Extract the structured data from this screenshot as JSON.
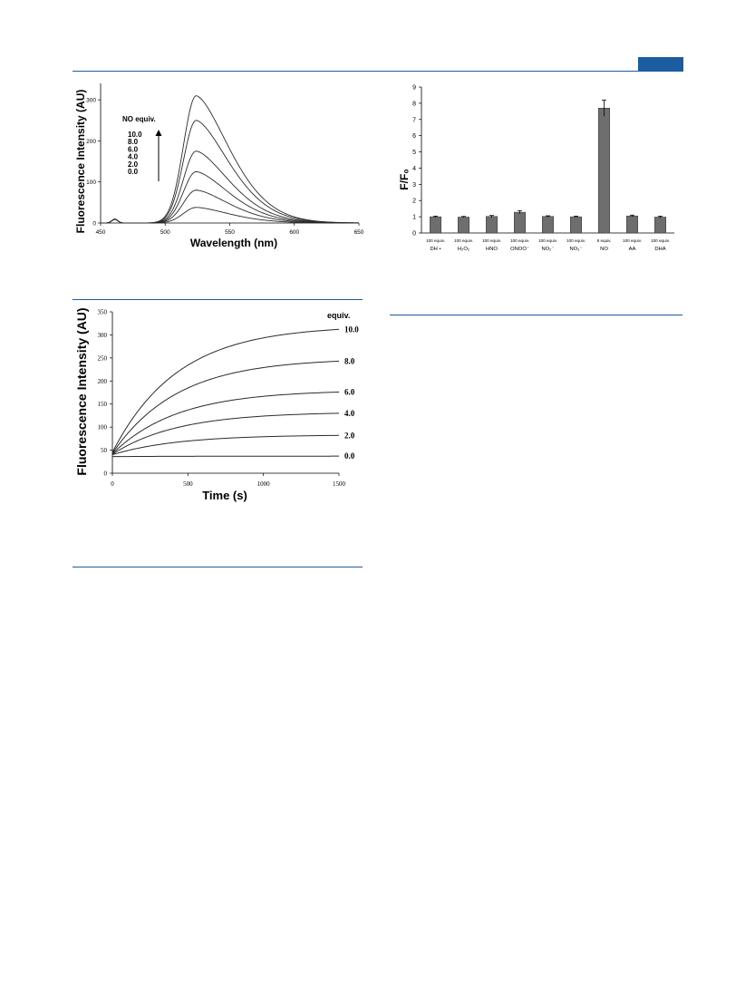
{
  "colors": {
    "header_blue": "#1b5d9e",
    "bar_fill": "#6e6e6e",
    "line": "#2a2a2a"
  },
  "chart_data": [
    {
      "type": "line",
      "xlabel": "Wavelength (nm)",
      "ylabel": "Fluorescence Intensity (AU)",
      "xlim": [
        450,
        650
      ],
      "ylim": [
        0,
        340
      ],
      "xticks": [
        "450",
        "500",
        "550",
        "600",
        "650"
      ],
      "yticks": [
        "0",
        "100",
        "200",
        "300"
      ],
      "legend_title": "NO equiv.",
      "legend_entries": [
        "10.0",
        "8.0",
        "6.0",
        "4.0",
        "2.0",
        "0.0"
      ],
      "series": [
        {
          "name": "10.0",
          "peak": 310
        },
        {
          "name": "8.0",
          "peak": 250
        },
        {
          "name": "6.0",
          "peak": 175
        },
        {
          "name": "4.0",
          "peak": 125
        },
        {
          "name": "2.0",
          "peak": 80
        },
        {
          "name": "0.0",
          "peak": 38
        }
      ],
      "peak_wavelength": 524,
      "minor_peak": {
        "wavelength": 461,
        "value": 10
      }
    },
    {
      "type": "bar",
      "ylabel": "F/F₀",
      "ylim": [
        0,
        9
      ],
      "yticks": [
        "0",
        "1",
        "2",
        "3",
        "4",
        "5",
        "6",
        "7",
        "8",
        "9"
      ],
      "categories": [
        {
          "top": "100 equiv.",
          "bottom": "DH •"
        },
        {
          "top": "100 equiv.",
          "bottom": "H₂O₂"
        },
        {
          "top": "100 equiv.",
          "bottom": "HNO"
        },
        {
          "top": "100 equiv.",
          "bottom": "ONOO⁻"
        },
        {
          "top": "100 equiv.",
          "bottom": "NO₂⁻"
        },
        {
          "top": "100 equiv.",
          "bottom": "NO₃⁻"
        },
        {
          "top": "8 equiv.",
          "bottom": "NO"
        },
        {
          "top": "100 equiv.",
          "bottom": "AA"
        },
        {
          "top": "100 equiv.",
          "bottom": "DHA"
        }
      ],
      "values": [
        1.0,
        0.98,
        1.02,
        1.28,
        1.02,
        1.0,
        7.7,
        1.05,
        0.98
      ],
      "errors": [
        0.04,
        0.04,
        0.06,
        0.1,
        0.04,
        0.04,
        0.5,
        0.05,
        0.06
      ]
    },
    {
      "type": "line",
      "xlabel": "Time (s)",
      "ylabel": "Fluorescence Intensity (AU)",
      "xlim": [
        0,
        1500
      ],
      "ylim": [
        0,
        350
      ],
      "xticks": [
        "0",
        "500",
        "1000",
        "1500"
      ],
      "yticks": [
        "0",
        "50",
        "100",
        "150",
        "200",
        "250",
        "300",
        "350"
      ],
      "legend_title": "equiv.",
      "series": [
        {
          "name": "10.0",
          "start": 45,
          "end": 312
        },
        {
          "name": "8.0",
          "start": 43,
          "end": 243
        },
        {
          "name": "6.0",
          "start": 42,
          "end": 176
        },
        {
          "name": "4.0",
          "start": 41,
          "end": 130
        },
        {
          "name": "2.0",
          "start": 40,
          "end": 82
        },
        {
          "name": "0.0",
          "start": 36,
          "end": 37
        }
      ]
    }
  ]
}
